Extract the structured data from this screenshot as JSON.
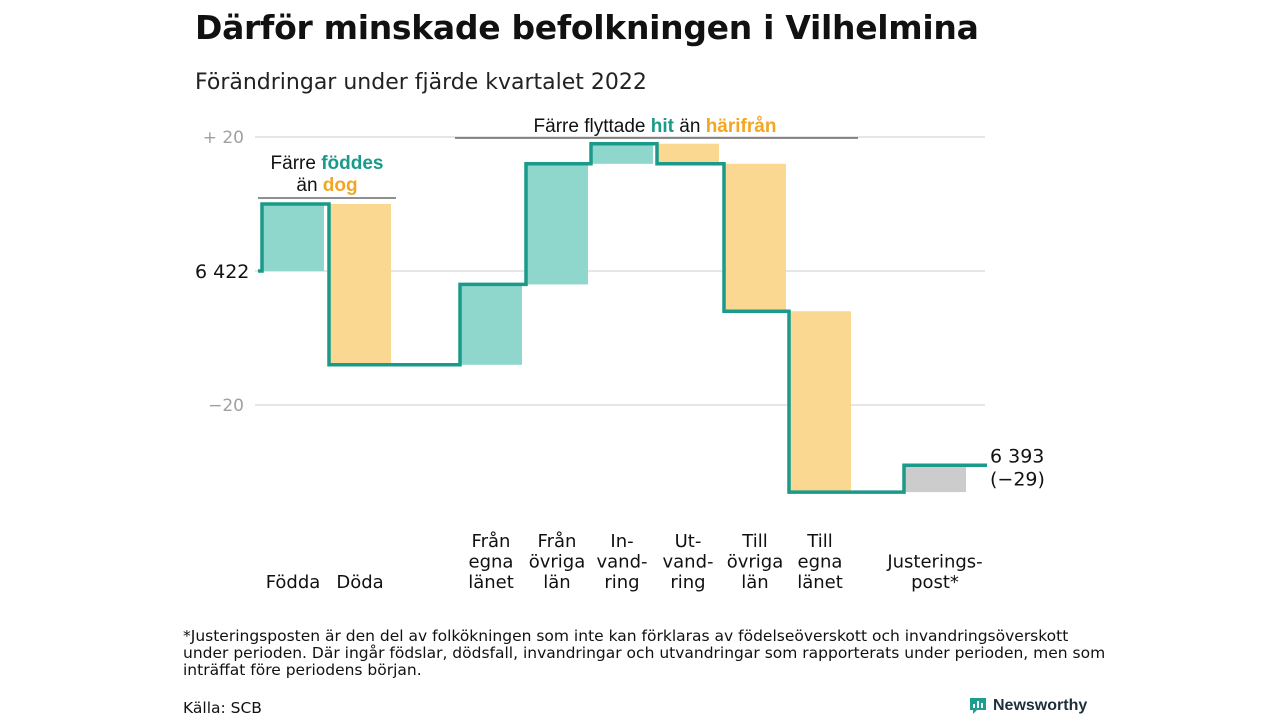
{
  "title": "Därför minskade befolkningen i Vilhelmina",
  "subtitle": "Förändringar under fjärde kvartalet 2022",
  "footnote": "*Justeringsposten är den del av folkökningen som inte kan förklaras av födelseöverskott och invandringsöverskott under perioden. Där ingår födslar, dödsfall, invandringar och utvandringar som rapporterats under perioden, men som inträffat före periodens början.",
  "source": "Källa: SCB",
  "brand": "Newsworthy",
  "colors": {
    "teal_line": "#1a9a8a",
    "teal_fill": "#8fd6cd",
    "orange_fill": "#fbd891",
    "orange_text": "#f2a623",
    "gray_fill": "#cccccc",
    "grid": "#dddddd",
    "tick_text": "#a0a0a0"
  },
  "annotations": {
    "births": {
      "pre": "Färre ",
      "hl1": "föddes",
      "mid": "än ",
      "hl2": "dog"
    },
    "migration": {
      "pre": "Färre flyttade ",
      "hl1": "hit",
      "mid": " än ",
      "hl2": "härifrån"
    }
  },
  "chart_data": {
    "type": "waterfall",
    "title": "Därför minskade befolkningen i Vilhelmina",
    "subtitle": "Förändringar under fjärde kvartalet 2022",
    "start_value": 6422,
    "start_label": "6 422",
    "end_value": 6393,
    "end_label": "6 393",
    "end_change_label": "(−29)",
    "y_range": [
      -36,
      21
    ],
    "y_ticks": [
      {
        "value": 20,
        "label": "+ 20"
      },
      {
        "value": -20,
        "label": "−20"
      }
    ],
    "grid": true,
    "steps": [
      {
        "category": "Födda",
        "label_lines": [
          "Födda"
        ],
        "change": 10,
        "kind": "inflow"
      },
      {
        "category": "Döda",
        "label_lines": [
          "Döda"
        ],
        "change": -24,
        "kind": "outflow"
      },
      {
        "category": "Från egna länet",
        "label_lines": [
          "Från",
          "egna",
          "länet"
        ],
        "change": 12,
        "kind": "inflow"
      },
      {
        "category": "Från övriga län",
        "label_lines": [
          "Från",
          "övriga",
          "län"
        ],
        "change": 18,
        "kind": "inflow"
      },
      {
        "category": "Invandring",
        "label_lines": [
          "In-",
          "vand-",
          "ring"
        ],
        "change": 3,
        "kind": "inflow"
      },
      {
        "category": "Utvandring",
        "label_lines": [
          "Ut-",
          "vand-",
          "ring"
        ],
        "change": -3,
        "kind": "outflow"
      },
      {
        "category": "Till övriga län",
        "label_lines": [
          "Till",
          "övriga",
          "län"
        ],
        "change": -22,
        "kind": "outflow"
      },
      {
        "category": "Till egna länet",
        "label_lines": [
          "Till",
          "egna",
          "länet"
        ],
        "change": -27,
        "kind": "outflow"
      },
      {
        "category": "Justeringspost*",
        "label_lines": [
          "Justerings-",
          "post*"
        ],
        "change": 4,
        "kind": "adjustment"
      }
    ]
  }
}
